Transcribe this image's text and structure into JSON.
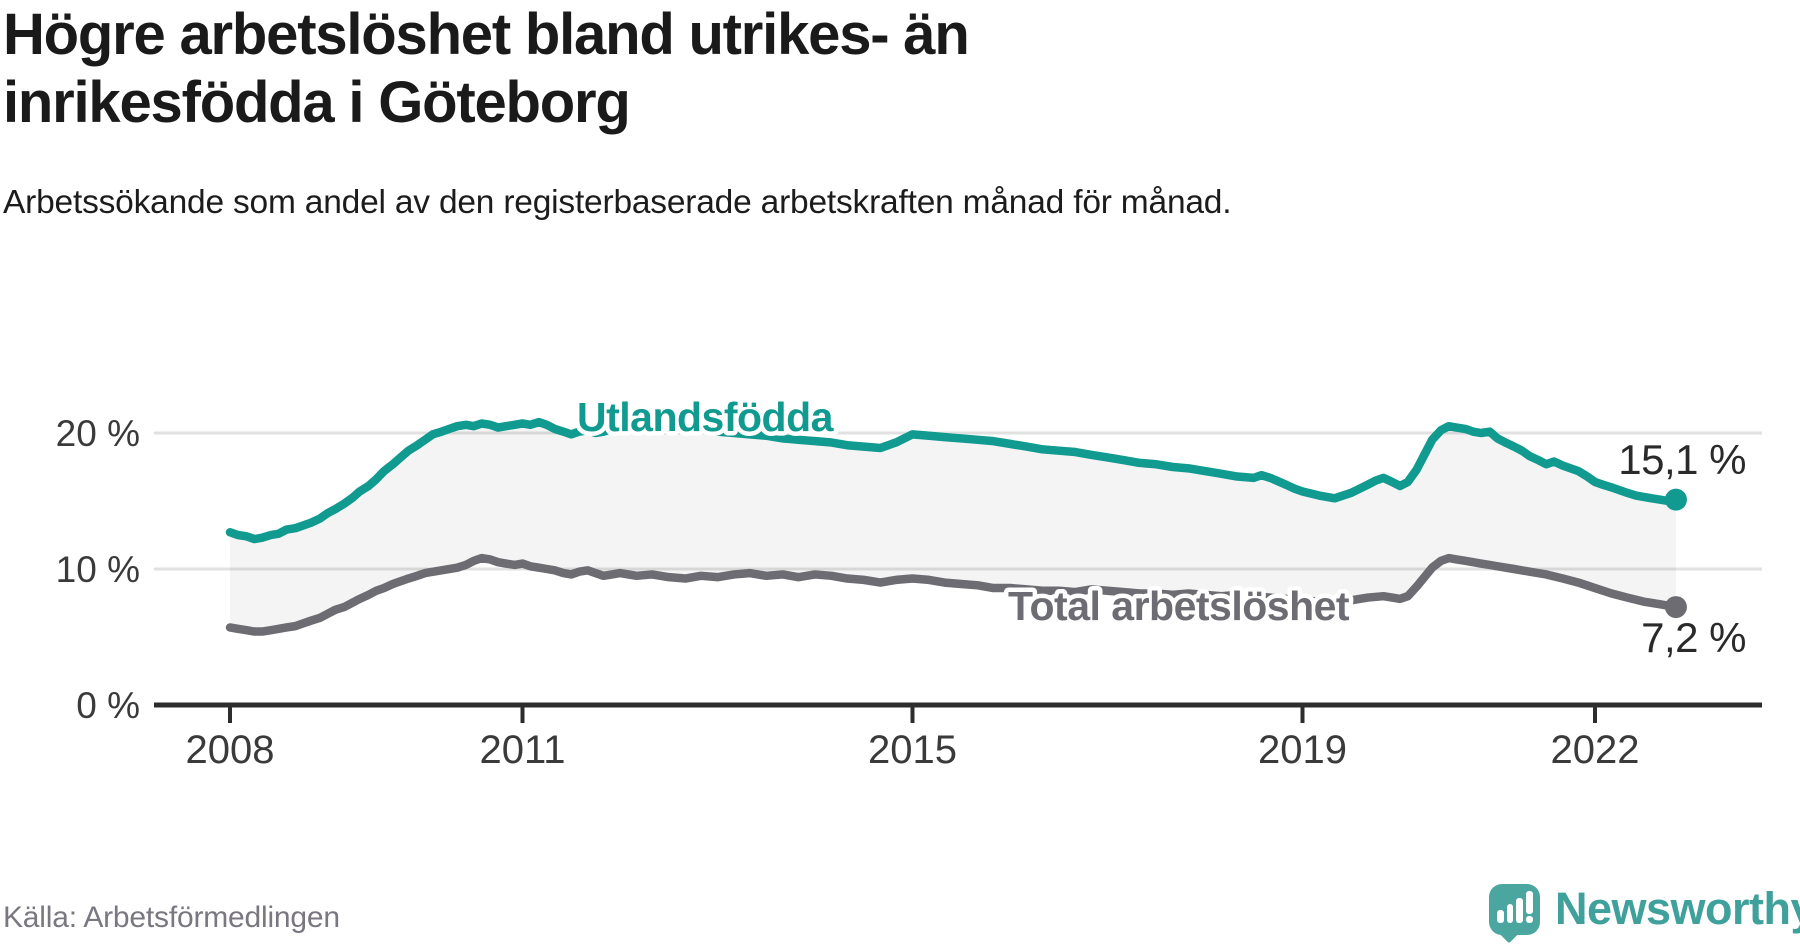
{
  "header": {
    "title": "Högre arbetslöshet bland utrikes- än inrikesfödda i Göteborg",
    "subtitle": "Arbetssökande som andel av den registerbaserade arbetskraften månad för månad."
  },
  "footer": {
    "source": "Källa: Arbetsförmedlingen",
    "brand": "Newsworthy",
    "brand_icon": "newsworthy-chart-bubble-icon"
  },
  "chart_data": {
    "type": "line",
    "title": "Högre arbetslöshet bland utrikes- än inrikesfödda i Göteborg",
    "unit": "%",
    "grid": "horizontal",
    "legend_position": "inline-labels",
    "y_axis": {
      "range": [
        0,
        23
      ],
      "ticks": [
        {
          "value": 0,
          "label": "0 %"
        },
        {
          "value": 10,
          "label": "10 %"
        },
        {
          "value": 20,
          "label": "20 %"
        }
      ]
    },
    "x_axis": {
      "range": [
        2008,
        2022.9
      ],
      "ticks": [
        {
          "value": 2008,
          "label": "2008"
        },
        {
          "value": 2011,
          "label": "2011"
        },
        {
          "value": 2015,
          "label": "2015"
        },
        {
          "value": 2019,
          "label": "2019"
        },
        {
          "value": 2022,
          "label": "2022"
        }
      ]
    },
    "colors": {
      "utlandsfodda": "#119a90",
      "total": "#6e6c73",
      "fill_between": "rgba(0,0,0,0.045)",
      "grid": "#e1e1e1",
      "axis": "#2d2d2d",
      "value_label": "#2a2a2a"
    },
    "series": [
      {
        "name": "Utlandsfödda",
        "end_label": "15,1 %",
        "end_value": 15.1,
        "points": [
          [
            2008.0,
            12.7
          ],
          [
            2008.08,
            12.5
          ],
          [
            2008.17,
            12.4
          ],
          [
            2008.25,
            12.2
          ],
          [
            2008.33,
            12.3
          ],
          [
            2008.42,
            12.5
          ],
          [
            2008.5,
            12.6
          ],
          [
            2008.58,
            12.9
          ],
          [
            2008.67,
            13.0
          ],
          [
            2008.75,
            13.2
          ],
          [
            2008.83,
            13.4
          ],
          [
            2008.92,
            13.7
          ],
          [
            2009.0,
            14.1
          ],
          [
            2009.08,
            14.4
          ],
          [
            2009.17,
            14.8
          ],
          [
            2009.25,
            15.2
          ],
          [
            2009.33,
            15.7
          ],
          [
            2009.42,
            16.1
          ],
          [
            2009.5,
            16.6
          ],
          [
            2009.58,
            17.2
          ],
          [
            2009.67,
            17.7
          ],
          [
            2009.75,
            18.2
          ],
          [
            2009.83,
            18.7
          ],
          [
            2009.92,
            19.1
          ],
          [
            2010.0,
            19.5
          ],
          [
            2010.08,
            19.9
          ],
          [
            2010.17,
            20.1
          ],
          [
            2010.25,
            20.3
          ],
          [
            2010.33,
            20.5
          ],
          [
            2010.42,
            20.6
          ],
          [
            2010.5,
            20.5
          ],
          [
            2010.58,
            20.7
          ],
          [
            2010.67,
            20.6
          ],
          [
            2010.75,
            20.4
          ],
          [
            2010.83,
            20.5
          ],
          [
            2010.92,
            20.6
          ],
          [
            2011.0,
            20.7
          ],
          [
            2011.08,
            20.6
          ],
          [
            2011.17,
            20.8
          ],
          [
            2011.25,
            20.6
          ],
          [
            2011.33,
            20.3
          ],
          [
            2011.42,
            20.1
          ],
          [
            2011.5,
            19.9
          ],
          [
            2011.58,
            20.1
          ],
          [
            2011.67,
            20.2
          ],
          [
            2011.75,
            20.0
          ],
          [
            2011.83,
            20.1
          ],
          [
            2011.92,
            20.3
          ],
          [
            2012.0,
            20.4
          ],
          [
            2012.17,
            20.5
          ],
          [
            2012.33,
            20.6
          ],
          [
            2012.5,
            20.4
          ],
          [
            2012.67,
            20.2
          ],
          [
            2012.83,
            20.3
          ],
          [
            2013.0,
            20.1
          ],
          [
            2013.17,
            20.0
          ],
          [
            2013.33,
            19.9
          ],
          [
            2013.5,
            19.8
          ],
          [
            2013.67,
            19.6
          ],
          [
            2013.83,
            19.5
          ],
          [
            2014.0,
            19.4
          ],
          [
            2014.17,
            19.3
          ],
          [
            2014.33,
            19.1
          ],
          [
            2014.5,
            19.0
          ],
          [
            2014.67,
            18.9
          ],
          [
            2014.83,
            19.3
          ],
          [
            2015.0,
            19.9
          ],
          [
            2015.17,
            19.8
          ],
          [
            2015.33,
            19.7
          ],
          [
            2015.5,
            19.6
          ],
          [
            2015.67,
            19.5
          ],
          [
            2015.83,
            19.4
          ],
          [
            2016.0,
            19.2
          ],
          [
            2016.17,
            19.0
          ],
          [
            2016.33,
            18.8
          ],
          [
            2016.5,
            18.7
          ],
          [
            2016.67,
            18.6
          ],
          [
            2016.83,
            18.4
          ],
          [
            2017.0,
            18.2
          ],
          [
            2017.17,
            18.0
          ],
          [
            2017.33,
            17.8
          ],
          [
            2017.5,
            17.7
          ],
          [
            2017.67,
            17.5
          ],
          [
            2017.83,
            17.4
          ],
          [
            2018.0,
            17.2
          ],
          [
            2018.17,
            17.0
          ],
          [
            2018.33,
            16.8
          ],
          [
            2018.5,
            16.7
          ],
          [
            2018.58,
            16.9
          ],
          [
            2018.67,
            16.7
          ],
          [
            2018.83,
            16.2
          ],
          [
            2018.92,
            15.9
          ],
          [
            2019.0,
            15.7
          ],
          [
            2019.17,
            15.4
          ],
          [
            2019.33,
            15.2
          ],
          [
            2019.5,
            15.6
          ],
          [
            2019.67,
            16.2
          ],
          [
            2019.75,
            16.5
          ],
          [
            2019.83,
            16.7
          ],
          [
            2019.92,
            16.4
          ],
          [
            2020.0,
            16.1
          ],
          [
            2020.08,
            16.4
          ],
          [
            2020.17,
            17.3
          ],
          [
            2020.25,
            18.4
          ],
          [
            2020.33,
            19.5
          ],
          [
            2020.42,
            20.2
          ],
          [
            2020.5,
            20.5
          ],
          [
            2020.58,
            20.4
          ],
          [
            2020.67,
            20.3
          ],
          [
            2020.75,
            20.1
          ],
          [
            2020.83,
            20.0
          ],
          [
            2020.92,
            20.1
          ],
          [
            2021.0,
            19.6
          ],
          [
            2021.08,
            19.3
          ],
          [
            2021.17,
            19.0
          ],
          [
            2021.25,
            18.7
          ],
          [
            2021.33,
            18.3
          ],
          [
            2021.42,
            18.0
          ],
          [
            2021.5,
            17.7
          ],
          [
            2021.58,
            17.9
          ],
          [
            2021.67,
            17.6
          ],
          [
            2021.75,
            17.4
          ],
          [
            2021.83,
            17.2
          ],
          [
            2021.92,
            16.8
          ],
          [
            2022.0,
            16.4
          ],
          [
            2022.08,
            16.2
          ],
          [
            2022.17,
            16.0
          ],
          [
            2022.25,
            15.8
          ],
          [
            2022.33,
            15.6
          ],
          [
            2022.42,
            15.4
          ],
          [
            2022.5,
            15.3
          ],
          [
            2022.58,
            15.2
          ],
          [
            2022.67,
            15.1
          ],
          [
            2022.75,
            15.0
          ],
          [
            2022.83,
            15.1
          ]
        ]
      },
      {
        "name": "Total arbetslöshet",
        "end_label": "7,2 %",
        "end_value": 7.2,
        "points": [
          [
            2008.0,
            5.7
          ],
          [
            2008.08,
            5.6
          ],
          [
            2008.17,
            5.5
          ],
          [
            2008.25,
            5.4
          ],
          [
            2008.33,
            5.4
          ],
          [
            2008.42,
            5.5
          ],
          [
            2008.5,
            5.6
          ],
          [
            2008.58,
            5.7
          ],
          [
            2008.67,
            5.8
          ],
          [
            2008.75,
            6.0
          ],
          [
            2008.83,
            6.2
          ],
          [
            2008.92,
            6.4
          ],
          [
            2009.0,
            6.7
          ],
          [
            2009.08,
            7.0
          ],
          [
            2009.17,
            7.2
          ],
          [
            2009.25,
            7.5
          ],
          [
            2009.33,
            7.8
          ],
          [
            2009.42,
            8.1
          ],
          [
            2009.5,
            8.4
          ],
          [
            2009.58,
            8.6
          ],
          [
            2009.67,
            8.9
          ],
          [
            2009.75,
            9.1
          ],
          [
            2009.83,
            9.3
          ],
          [
            2009.92,
            9.5
          ],
          [
            2010.0,
            9.7
          ],
          [
            2010.17,
            9.9
          ],
          [
            2010.33,
            10.1
          ],
          [
            2010.42,
            10.3
          ],
          [
            2010.5,
            10.6
          ],
          [
            2010.58,
            10.8
          ],
          [
            2010.67,
            10.7
          ],
          [
            2010.75,
            10.5
          ],
          [
            2010.83,
            10.4
          ],
          [
            2010.92,
            10.3
          ],
          [
            2011.0,
            10.4
          ],
          [
            2011.08,
            10.2
          ],
          [
            2011.17,
            10.1
          ],
          [
            2011.25,
            10.0
          ],
          [
            2011.33,
            9.9
          ],
          [
            2011.42,
            9.7
          ],
          [
            2011.5,
            9.6
          ],
          [
            2011.58,
            9.8
          ],
          [
            2011.67,
            9.9
          ],
          [
            2011.75,
            9.7
          ],
          [
            2011.83,
            9.5
          ],
          [
            2011.92,
            9.6
          ],
          [
            2012.0,
            9.7
          ],
          [
            2012.17,
            9.5
          ],
          [
            2012.33,
            9.6
          ],
          [
            2012.5,
            9.4
          ],
          [
            2012.67,
            9.3
          ],
          [
            2012.83,
            9.5
          ],
          [
            2013.0,
            9.4
          ],
          [
            2013.17,
            9.6
          ],
          [
            2013.33,
            9.7
          ],
          [
            2013.5,
            9.5
          ],
          [
            2013.67,
            9.6
          ],
          [
            2013.83,
            9.4
          ],
          [
            2014.0,
            9.6
          ],
          [
            2014.17,
            9.5
          ],
          [
            2014.33,
            9.3
          ],
          [
            2014.5,
            9.2
          ],
          [
            2014.67,
            9.0
          ],
          [
            2014.83,
            9.2
          ],
          [
            2015.0,
            9.3
          ],
          [
            2015.17,
            9.2
          ],
          [
            2015.33,
            9.0
          ],
          [
            2015.5,
            8.9
          ],
          [
            2015.67,
            8.8
          ],
          [
            2015.83,
            8.6
          ],
          [
            2016.0,
            8.6
          ],
          [
            2016.17,
            8.5
          ],
          [
            2016.33,
            8.4
          ],
          [
            2016.5,
            8.4
          ],
          [
            2016.67,
            8.3
          ],
          [
            2016.83,
            8.5
          ],
          [
            2017.0,
            8.4
          ],
          [
            2017.17,
            8.3
          ],
          [
            2017.33,
            8.2
          ],
          [
            2017.5,
            8.2
          ],
          [
            2017.67,
            8.1
          ],
          [
            2017.83,
            8.2
          ],
          [
            2018.0,
            8.1
          ],
          [
            2018.17,
            8.0
          ],
          [
            2018.33,
            8.1
          ],
          [
            2018.5,
            8.0
          ],
          [
            2018.67,
            7.9
          ],
          [
            2018.83,
            7.8
          ],
          [
            2019.0,
            7.7
          ],
          [
            2019.17,
            7.6
          ],
          [
            2019.33,
            7.5
          ],
          [
            2019.5,
            7.7
          ],
          [
            2019.67,
            7.9
          ],
          [
            2019.83,
            8.0
          ],
          [
            2019.92,
            7.9
          ],
          [
            2020.0,
            7.8
          ],
          [
            2020.08,
            8.0
          ],
          [
            2020.17,
            8.7
          ],
          [
            2020.25,
            9.4
          ],
          [
            2020.33,
            10.1
          ],
          [
            2020.42,
            10.6
          ],
          [
            2020.5,
            10.8
          ],
          [
            2020.58,
            10.7
          ],
          [
            2020.67,
            10.6
          ],
          [
            2020.75,
            10.5
          ],
          [
            2020.83,
            10.4
          ],
          [
            2020.92,
            10.3
          ],
          [
            2021.0,
            10.2
          ],
          [
            2021.17,
            10.0
          ],
          [
            2021.33,
            9.8
          ],
          [
            2021.5,
            9.6
          ],
          [
            2021.67,
            9.3
          ],
          [
            2021.83,
            9.0
          ],
          [
            2022.0,
            8.6
          ],
          [
            2022.17,
            8.2
          ],
          [
            2022.33,
            7.9
          ],
          [
            2022.5,
            7.6
          ],
          [
            2022.67,
            7.4
          ],
          [
            2022.83,
            7.2
          ]
        ]
      }
    ]
  }
}
